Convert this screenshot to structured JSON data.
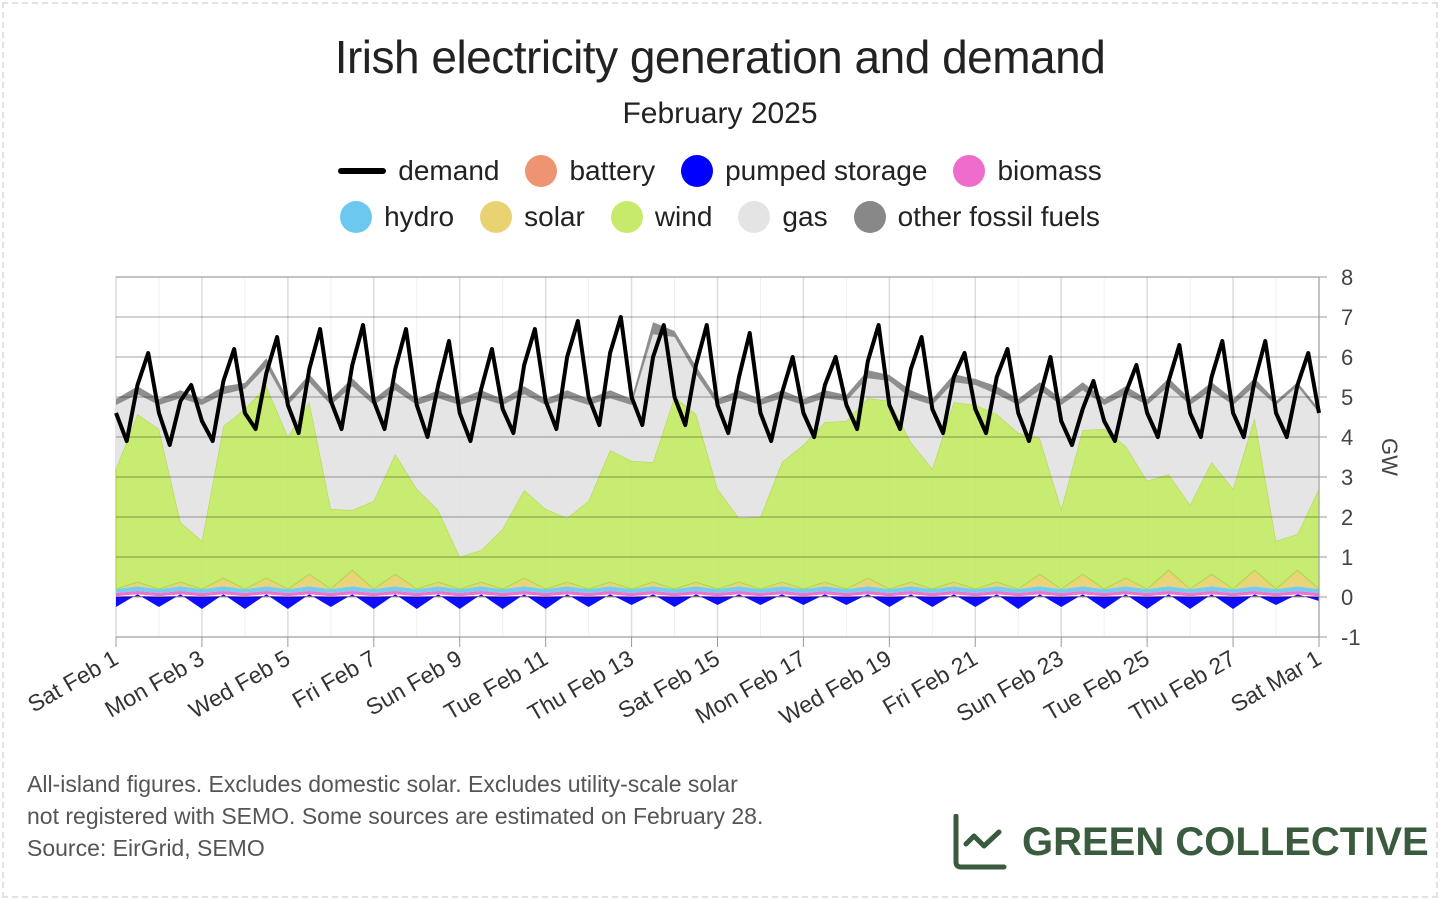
{
  "title": "Irish electricity generation and demand",
  "subtitle": "February 2025",
  "legend": [
    {
      "name": "demand",
      "color": "#000000",
      "kind": "line"
    },
    {
      "name": "battery",
      "color": "#ee9472"
    },
    {
      "name": "pumped storage",
      "color": "#0000ff"
    },
    {
      "name": "biomass",
      "color": "#ee6ccb"
    },
    {
      "name": "hydro",
      "color": "#6cc8ee"
    },
    {
      "name": "solar",
      "color": "#e9d272"
    },
    {
      "name": "wind",
      "color": "#c6ea6a"
    },
    {
      "name": "gas",
      "color": "#e4e4e4"
    },
    {
      "name": "other fossil fuels",
      "color": "#888888"
    }
  ],
  "notes": [
    "All-island figures. Excludes domestic solar. Excludes utility-scale solar",
    "not registered with SEMO. Some sources are estimated on February 28.",
    "Source: EirGrid, SEMO"
  ],
  "logo": {
    "text": "GREEN COLLECTIVE",
    "icon": "line-chart-icon",
    "color": "#3a5b3e"
  },
  "chart_data": {
    "type": "area",
    "stacked": true,
    "title": "Irish electricity generation and demand",
    "subtitle": "February 2025",
    "ylabel": "GW",
    "ylim": [
      -1,
      8
    ],
    "yticks": [
      -1,
      0,
      1,
      2,
      3,
      4,
      5,
      6,
      7,
      8
    ],
    "xlim": [
      "2025-02-01",
      "2025-03-01"
    ],
    "xtick_labels": [
      "Sat Feb 1",
      "Mon Feb 3",
      "Wed Feb 5",
      "Fri Feb 7",
      "Sun Feb 9",
      "Tue Feb 11",
      "Thu Feb 13",
      "Sat Feb 15",
      "Mon Feb 17",
      "Wed Feb 19",
      "Fri Feb 21",
      "Sun Feb 23",
      "Tue Feb 25",
      "Thu Feb 27",
      "Sat Mar 1"
    ],
    "grid": true,
    "legend_position": "top",
    "stack_interval_hours": 12,
    "demand_interval_hours": 6,
    "demand": [
      4.6,
      3.9,
      5.3,
      6.1,
      4.6,
      3.8,
      4.9,
      5.3,
      4.4,
      3.9,
      5.4,
      6.2,
      4.6,
      4.2,
      5.6,
      6.5,
      4.8,
      4.1,
      5.7,
      6.7,
      4.9,
      4.2,
      5.8,
      6.8,
      4.9,
      4.2,
      5.7,
      6.7,
      4.8,
      4.0,
      5.3,
      6.4,
      4.6,
      3.9,
      5.2,
      6.2,
      4.7,
      4.1,
      5.8,
      6.7,
      4.9,
      4.2,
      6.0,
      6.9,
      5.0,
      4.3,
      6.1,
      7.0,
      5.0,
      4.3,
      6.0,
      6.8,
      5.0,
      4.3,
      5.8,
      6.8,
      4.8,
      4.1,
      5.5,
      6.6,
      4.6,
      3.9,
      5.1,
      6.0,
      4.6,
      4.0,
      5.3,
      6.0,
      4.8,
      4.2,
      5.9,
      6.8,
      4.8,
      4.2,
      5.7,
      6.5,
      4.7,
      4.1,
      5.5,
      6.1,
      4.7,
      4.1,
      5.5,
      6.2,
      4.6,
      3.9,
      5.0,
      6.0,
      4.4,
      3.8,
      4.7,
      5.4,
      4.4,
      3.9,
      5.1,
      5.8,
      4.6,
      4.0,
      5.4,
      6.3,
      4.6,
      4.0,
      5.5,
      6.4,
      4.6,
      4.0,
      5.4,
      6.4,
      4.6,
      4.0,
      5.3,
      6.1,
      4.6
    ],
    "series": [
      {
        "name": "pumped storage",
        "values": [
          -0.25,
          0.05,
          -0.25,
          0.05,
          -0.3,
          0.05,
          -0.3,
          0.05,
          -0.3,
          0.05,
          -0.25,
          0.05,
          -0.3,
          0.05,
          -0.3,
          0.05,
          -0.3,
          0.05,
          -0.3,
          0.05,
          -0.3,
          0.05,
          -0.25,
          0.05,
          -0.2,
          0.05,
          -0.25,
          0.05,
          -0.2,
          0.05,
          -0.2,
          0.05,
          -0.2,
          0.05,
          -0.2,
          0.05,
          -0.25,
          0.05,
          -0.25,
          0.05,
          -0.25,
          0.05,
          -0.3,
          0.05,
          -0.25,
          0.05,
          -0.3,
          0.05,
          -0.3,
          0.05,
          -0.3,
          0.05,
          -0.3,
          0.05,
          -0.2,
          0.05,
          -0.1
        ]
      },
      {
        "name": "battery",
        "values": [
          0.02,
          0.02,
          0.02,
          0.02,
          0.02,
          0.02,
          0.02,
          0.02,
          0.02,
          0.02,
          0.02,
          0.02,
          0.02,
          0.02,
          0.02,
          0.02,
          0.02,
          0.02,
          0.02,
          0.02,
          0.02,
          0.02,
          0.02,
          0.02,
          0.02,
          0.02,
          0.02,
          0.02,
          0.02,
          0.02,
          0.02,
          0.02,
          0.02,
          0.02,
          0.02,
          0.02,
          0.02,
          0.02,
          0.02,
          0.02,
          0.02,
          0.02,
          0.02,
          0.02,
          0.02,
          0.02,
          0.02,
          0.02,
          0.02,
          0.02,
          0.02,
          0.02,
          0.02,
          0.02,
          0.02,
          0.02,
          0.02
        ]
      },
      {
        "name": "biomass",
        "values": [
          0.08,
          0.08,
          0.08,
          0.08,
          0.08,
          0.08,
          0.08,
          0.08,
          0.08,
          0.08,
          0.08,
          0.08,
          0.08,
          0.08,
          0.08,
          0.08,
          0.08,
          0.08,
          0.08,
          0.08,
          0.08,
          0.08,
          0.08,
          0.08,
          0.08,
          0.08,
          0.08,
          0.08,
          0.08,
          0.08,
          0.08,
          0.08,
          0.08,
          0.08,
          0.08,
          0.08,
          0.08,
          0.08,
          0.08,
          0.08,
          0.08,
          0.08,
          0.08,
          0.08,
          0.08,
          0.08,
          0.08,
          0.08,
          0.08,
          0.08,
          0.08,
          0.08,
          0.08,
          0.08,
          0.08,
          0.08,
          0.08
        ]
      },
      {
        "name": "hydro",
        "values": [
          0.1,
          0.12,
          0.1,
          0.12,
          0.1,
          0.12,
          0.1,
          0.12,
          0.1,
          0.12,
          0.1,
          0.12,
          0.1,
          0.12,
          0.1,
          0.12,
          0.1,
          0.12,
          0.1,
          0.12,
          0.1,
          0.12,
          0.1,
          0.12,
          0.1,
          0.12,
          0.1,
          0.12,
          0.1,
          0.12,
          0.1,
          0.12,
          0.1,
          0.12,
          0.1,
          0.12,
          0.1,
          0.12,
          0.1,
          0.12,
          0.1,
          0.12,
          0.1,
          0.12,
          0.1,
          0.12,
          0.1,
          0.12,
          0.1,
          0.12,
          0.1,
          0.12,
          0.1,
          0.12,
          0.1,
          0.12,
          0.1
        ]
      },
      {
        "name": "solar",
        "values": [
          0,
          0.1,
          0,
          0.1,
          0,
          0.2,
          0,
          0.2,
          0,
          0.3,
          0,
          0.4,
          0,
          0.3,
          0,
          0.1,
          0,
          0.1,
          0,
          0.2,
          0,
          0.1,
          0,
          0.1,
          0,
          0.1,
          0,
          0.1,
          0,
          0.1,
          0,
          0.1,
          0,
          0.1,
          0,
          0.2,
          0,
          0.1,
          0,
          0.1,
          0,
          0.1,
          0,
          0.3,
          0,
          0.3,
          0,
          0.2,
          0,
          0.4,
          0,
          0.3,
          0,
          0.4,
          0,
          0.4,
          0
        ]
      },
      {
        "name": "wind",
        "values": [
          3.0,
          4.2,
          4.0,
          1.5,
          1.2,
          3.8,
          4.5,
          4.8,
          3.8,
          4.3,
          2.0,
          1.5,
          2.2,
          3.0,
          2.5,
          1.8,
          0.8,
          0.8,
          1.5,
          2.2,
          2.0,
          1.6,
          2.2,
          3.3,
          3.2,
          3.0,
          4.8,
          4.2,
          2.5,
          1.6,
          1.8,
          3.0,
          3.6,
          4.0,
          4.2,
          4.5,
          4.7,
          3.5,
          3.0,
          4.5,
          4.6,
          4.2,
          3.9,
          3.4,
          2.0,
          3.6,
          4.0,
          3.3,
          2.7,
          2.4,
          2.1,
          2.8,
          2.5,
          3.8,
          1.2,
          0.9,
          2.5
        ]
      },
      {
        "name": "gas",
        "values": [
          1.6,
          0.5,
          0.6,
          3.1,
          3.4,
          0.8,
          0.5,
          0.5,
          0.8,
          0.5,
          2.6,
          3.1,
          2.4,
          1.6,
          2.1,
          2.8,
          3.8,
          3.8,
          3.1,
          2.4,
          2.6,
          3.0,
          2.4,
          1.3,
          1.4,
          3.2,
          1.5,
          1.0,
          2.1,
          3.0,
          2.8,
          1.6,
          1.0,
          0.6,
          0.5,
          0.5,
          0.5,
          1.1,
          1.6,
          0.5,
          0.5,
          0.5,
          0.7,
          1.2,
          2.6,
          1.0,
          0.6,
          1.3,
          1.9,
          2.2,
          2.5,
          1.8,
          2.1,
          0.8,
          3.4,
          3.7,
          1.9
        ]
      },
      {
        "name": "other fossil fuels",
        "values": [
          0.15,
          0.2,
          0.15,
          0.2,
          0.15,
          0.2,
          0.15,
          0.2,
          0.15,
          0.2,
          0.15,
          0.2,
          0.15,
          0.2,
          0.15,
          0.2,
          0.15,
          0.2,
          0.15,
          0.2,
          0.15,
          0.2,
          0.15,
          0.2,
          0.15,
          0.3,
          0.15,
          0.2,
          0.15,
          0.2,
          0.15,
          0.2,
          0.15,
          0.2,
          0.15,
          0.2,
          0.15,
          0.2,
          0.15,
          0.2,
          0.15,
          0.2,
          0.15,
          0.2,
          0.15,
          0.2,
          0.15,
          0.2,
          0.15,
          0.2,
          0.15,
          0.2,
          0.15,
          0.2,
          0.1,
          0.1,
          0.1
        ]
      }
    ]
  }
}
